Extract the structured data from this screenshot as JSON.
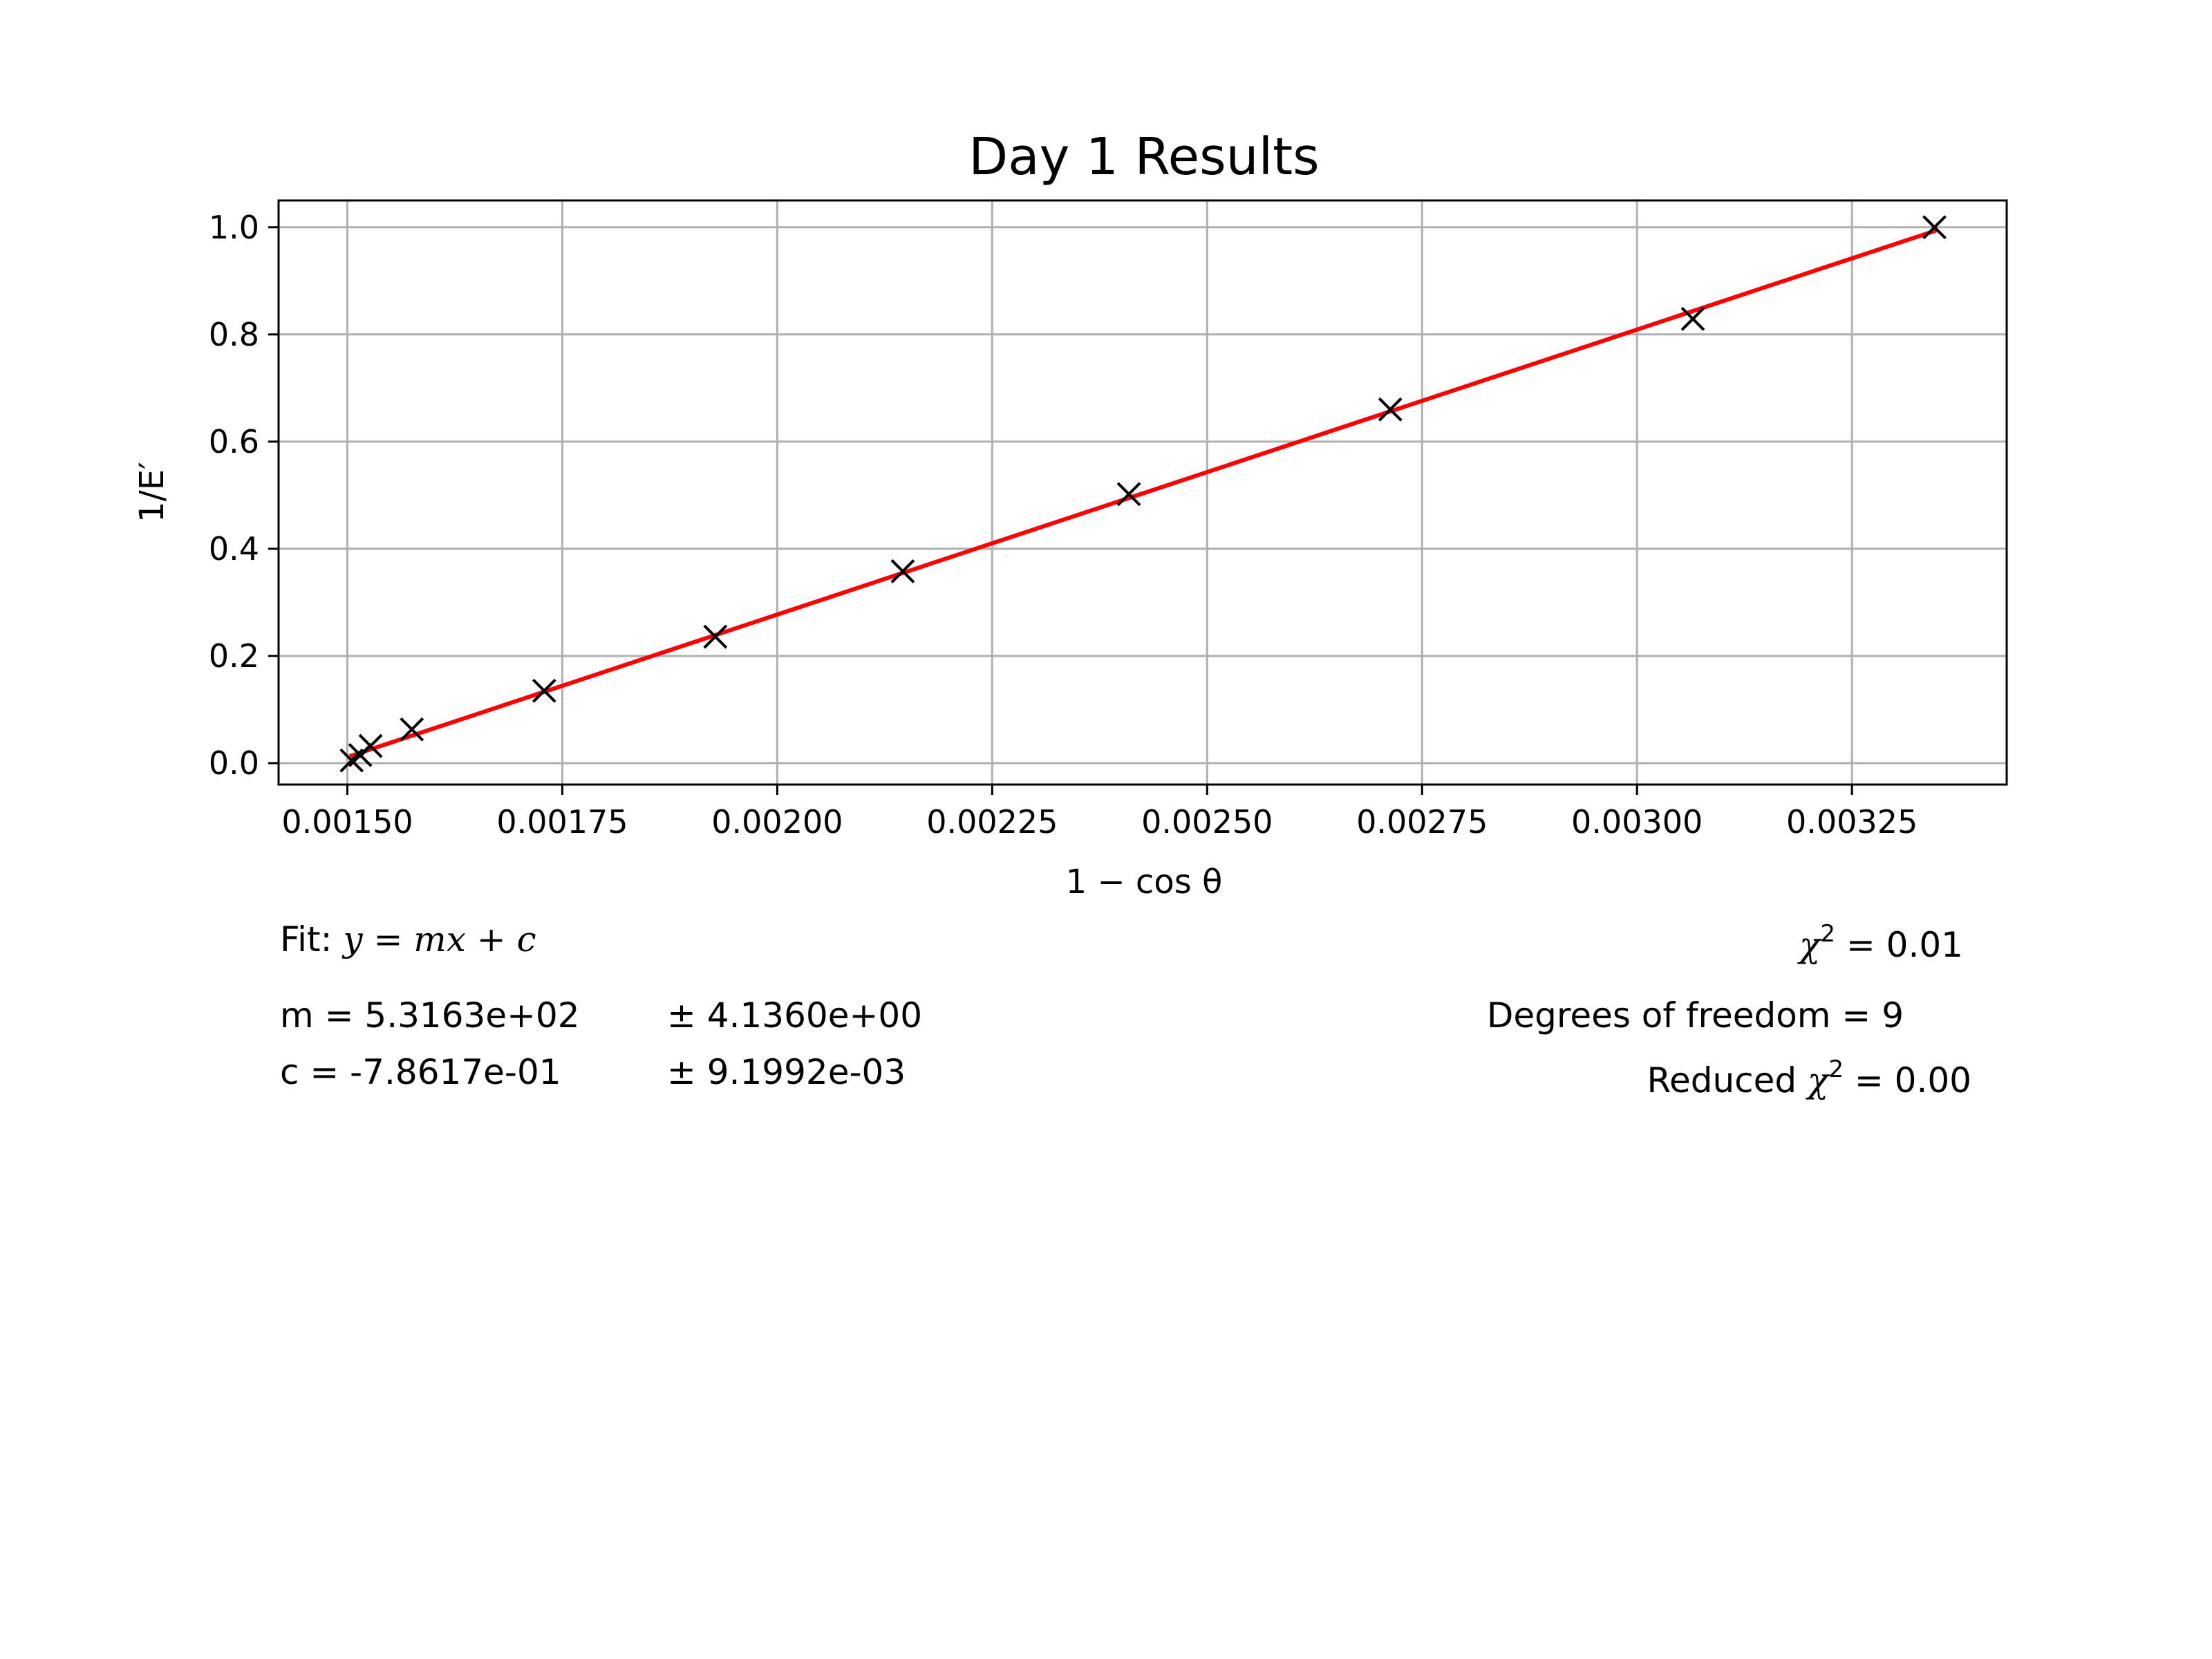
{
  "chart_data": {
    "type": "scatter",
    "title": "Day 1 Results",
    "xlabel": "1 − cos θ",
    "ylabel": "1/E′",
    "xlim": [
      0.00142,
      0.00343
    ],
    "ylim": [
      -0.04,
      1.05
    ],
    "xticks": [
      0.0015,
      0.00175,
      0.002,
      0.00225,
      0.0025,
      0.00275,
      0.003,
      0.00325
    ],
    "xtick_labels": [
      "0.00150",
      "0.00175",
      "0.00200",
      "0.00225",
      "0.00250",
      "0.00275",
      "0.00300",
      "0.00325"
    ],
    "yticks": [
      0.0,
      0.2,
      0.4,
      0.6,
      0.8,
      1.0
    ],
    "ytick_labels": [
      "0.0",
      "0.2",
      "0.4",
      "0.6",
      "0.8",
      "1.0"
    ],
    "grid": true,
    "series": [
      {
        "kind": "points",
        "marker": "x",
        "color": "#000000",
        "x": [
          0.001505,
          0.001515,
          0.001527,
          0.001575,
          0.001729,
          0.001928,
          0.002146,
          0.002409,
          0.002713,
          0.003065,
          0.003346
        ],
        "y": [
          0.005,
          0.015,
          0.032,
          0.063,
          0.135,
          0.236,
          0.358,
          0.502,
          0.66,
          0.829,
          1.0
        ]
      },
      {
        "kind": "fit-line",
        "color": "#ff0000",
        "x": [
          0.001505,
          0.003346
        ],
        "y": [
          0.014,
          0.993
        ]
      }
    ]
  },
  "fit_info": {
    "fit_prefix": "Fit: ",
    "fit_equation": "y = mx + c",
    "m_text": "m = 5.3163e+02",
    "m_err": "± 4.1360e+00",
    "c_text": "c = -7.8617e-01",
    "c_err": "± 9.1992e-03",
    "chi2_symbol": "χ",
    "chi2_sup": "2",
    "chi2_value": " = 0.01",
    "dof_text": "Degrees of freedom = 9",
    "reduced_prefix": "Reduced ",
    "reduced_symbol": "χ",
    "reduced_sup": "2",
    "reduced_value": " = 0.00"
  }
}
